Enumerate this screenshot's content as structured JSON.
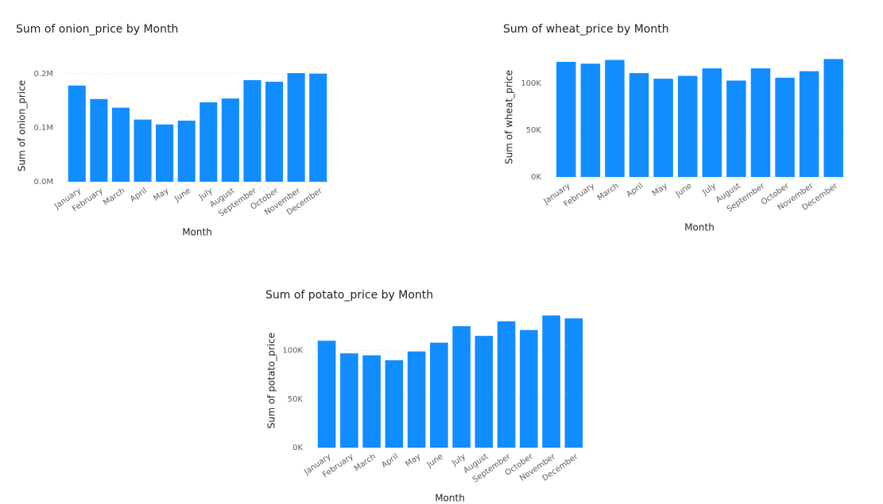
{
  "chart_data": [
    {
      "type": "bar",
      "title": "Sum of onion_price by Month",
      "x_label": "Month",
      "y_label": "Sum of onion_price",
      "categories": [
        "January",
        "February",
        "March",
        "April",
        "May",
        "June",
        "July",
        "August",
        "September",
        "October",
        "November",
        "December"
      ],
      "values": [
        178000,
        153000,
        137000,
        115000,
        106000,
        113000,
        147000,
        154000,
        188000,
        185000,
        201000,
        200000
      ],
      "color": "#118DFF",
      "ylim": [
        0,
        207000
      ],
      "yticks": [
        {
          "value": 0,
          "label": "0.0M"
        },
        {
          "value": 100000,
          "label": "0.1M"
        },
        {
          "value": 200000,
          "label": "0.2M"
        }
      ],
      "grid": true
    },
    {
      "type": "bar",
      "title": "Sum of wheat_price by Month",
      "x_label": "Month",
      "y_label": "Sum of wheat_price",
      "categories": [
        "January",
        "February",
        "March",
        "April",
        "May",
        "June",
        "July",
        "August",
        "September",
        "October",
        "November",
        "December"
      ],
      "values": [
        123000,
        121000,
        125000,
        111000,
        105000,
        108000,
        116000,
        103000,
        116000,
        106000,
        113000,
        126000
      ],
      "color": "#118DFF",
      "ylim": [
        0,
        128000
      ],
      "yticks": [
        {
          "value": 0,
          "label": "0K"
        },
        {
          "value": 50000,
          "label": "50K"
        },
        {
          "value": 100000,
          "label": "100K"
        }
      ],
      "grid": true
    },
    {
      "type": "bar",
      "title": "Sum of potato_price by Month",
      "x_label": "Month",
      "y_label": "Sum of potato_price",
      "categories": [
        "January",
        "February",
        "March",
        "April",
        "May",
        "June",
        "July",
        "August",
        "September",
        "October",
        "November",
        "December"
      ],
      "values": [
        110000,
        97000,
        95000,
        90000,
        99000,
        108000,
        125000,
        115000,
        130000,
        121000,
        136000,
        133000
      ],
      "color": "#118DFF",
      "ylim": [
        0,
        138000
      ],
      "yticks": [
        {
          "value": 0,
          "label": "0K"
        },
        {
          "value": 50000,
          "label": "50K"
        },
        {
          "value": 100000,
          "label": "100K"
        }
      ],
      "grid": true
    }
  ]
}
